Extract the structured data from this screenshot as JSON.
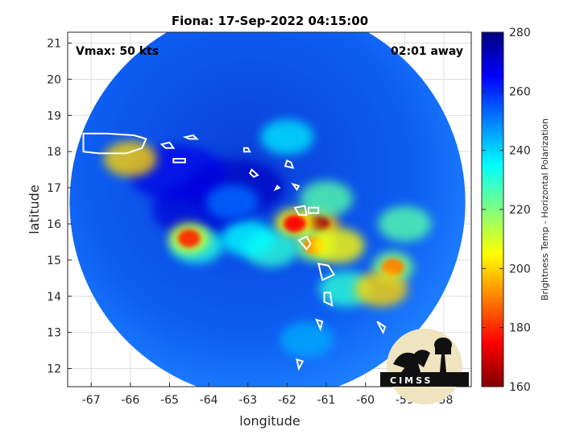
{
  "chart_data": {
    "type": "heatmap",
    "title": "Fiona: 17-Sep-2022 04:15:00",
    "xlabel": "longitude",
    "ylabel": "latitude",
    "xlim": [
      -67.6,
      -57.3
    ],
    "ylim": [
      11.5,
      21.3
    ],
    "xticks": [
      "-67",
      "-66",
      "-65",
      "-64",
      "-63",
      "-62",
      "-61",
      "-60",
      "-59",
      "-58"
    ],
    "yticks": [
      "21",
      "20",
      "19",
      "18",
      "17",
      "16",
      "15",
      "14",
      "13",
      "12"
    ],
    "grid": true,
    "annotations": {
      "vmax": "Vmax: 50 kts",
      "away": "02:01 away"
    },
    "swath": {
      "center_lon": -62.5,
      "center_lat": 16.6,
      "radius_deg": 5.05
    },
    "colorbar": {
      "label": "Brightness Temp - Horizontal Polarization",
      "range": [
        160,
        280
      ],
      "ticks": [
        "280",
        "260",
        "240",
        "220",
        "200",
        "180",
        "160"
      ],
      "colormap": "jet"
    },
    "features": [
      {
        "lon": -61.2,
        "lat": 16.0,
        "tb": 165
      },
      {
        "lon": -61.8,
        "lat": 16.0,
        "tb": 175
      },
      {
        "lon": -61.3,
        "lat": 15.4,
        "tb": 190
      },
      {
        "lon": -60.7,
        "lat": 15.4,
        "tb": 205
      },
      {
        "lon": -61.0,
        "lat": 16.7,
        "tb": 225
      },
      {
        "lon": -62.4,
        "lat": 15.3,
        "tb": 230
      },
      {
        "lon": -64.3,
        "lat": 15.4,
        "tb": 232
      },
      {
        "lon": -64.5,
        "lat": 15.6,
        "tb": 180
      },
      {
        "lon": -59.0,
        "lat": 16.0,
        "tb": 225
      },
      {
        "lon": -59.3,
        "lat": 14.8,
        "tb": 190
      },
      {
        "lon": -60.5,
        "lat": 14.2,
        "tb": 230
      },
      {
        "lon": -62.0,
        "lat": 18.4,
        "tb": 238
      },
      {
        "lon": -63.0,
        "lat": 15.6,
        "tb": 235
      },
      {
        "lon": -59.6,
        "lat": 14.2,
        "tb": 200
      },
      {
        "lon": -63.4,
        "lat": 16.6,
        "tb": 252
      },
      {
        "lon": -61.5,
        "lat": 12.8,
        "tb": 245
      },
      {
        "lon": -66.0,
        "lat": 17.8,
        "tb": 200
      }
    ],
    "cold_spots": [
      {
        "lon": -63.3,
        "lat": 17.0,
        "tb": 272
      },
      {
        "lon": -64.2,
        "lat": 16.4,
        "tb": 270
      },
      {
        "lon": -64.8,
        "lat": 17.4,
        "tb": 268
      }
    ]
  },
  "logo": {
    "text": "CIMSS"
  }
}
